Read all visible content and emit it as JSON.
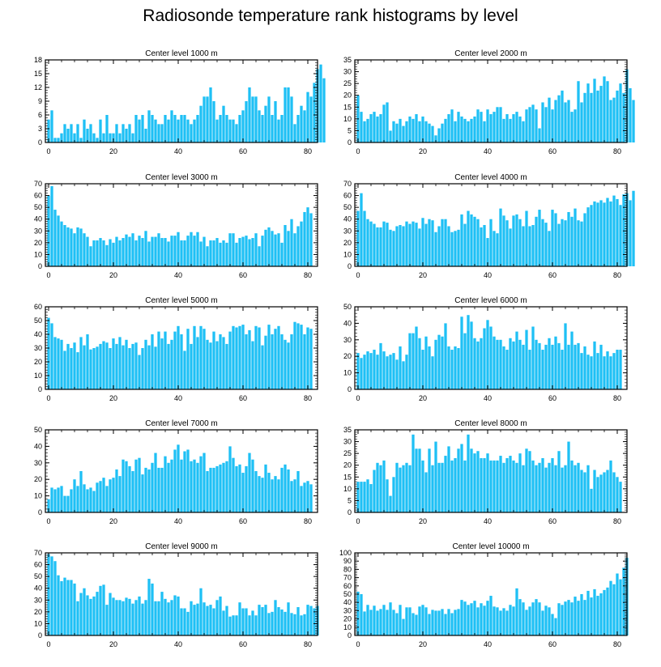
{
  "title": "Radiosonde temperature rank histograms by level",
  "chart_data": [
    {
      "type": "bar",
      "title": "Center level 1000 m",
      "xlabel": "",
      "ylabel": "",
      "xlim": [
        -1,
        83
      ],
      "ylim": [
        0,
        18
      ],
      "xticks": [
        0,
        20,
        40,
        60,
        80
      ],
      "yticks": [
        0,
        3,
        6,
        9,
        12,
        15,
        18
      ],
      "values": [
        5,
        7,
        1,
        1,
        2,
        4,
        3,
        4,
        2,
        4,
        1,
        5,
        3,
        4,
        2,
        1,
        5,
        2,
        6,
        2,
        2,
        4,
        2,
        4,
        3,
        4,
        2,
        6,
        5,
        6,
        3,
        7,
        6,
        5,
        4,
        4,
        6,
        5,
        7,
        6,
        5,
        6,
        6,
        5,
        4,
        5,
        6,
        8,
        10,
        10,
        12,
        9,
        5,
        6,
        8,
        6,
        5,
        5,
        4,
        6,
        7,
        9,
        12,
        10,
        10,
        7,
        6,
        8,
        10,
        6,
        9,
        5,
        6,
        12,
        12,
        10,
        4,
        6,
        8,
        7,
        11,
        10,
        13,
        16,
        17,
        14
      ]
    },
    {
      "type": "bar",
      "title": "Center level 2000 m",
      "xlabel": "",
      "ylabel": "",
      "xlim": [
        -1,
        83
      ],
      "ylim": [
        0,
        35
      ],
      "xticks": [
        0,
        20,
        40,
        60,
        80
      ],
      "yticks": [
        0,
        5,
        10,
        15,
        20,
        25,
        30,
        35
      ],
      "values": [
        20,
        13,
        9,
        10,
        12,
        13,
        11,
        12,
        16,
        17,
        5,
        9,
        8,
        10,
        7,
        9,
        11,
        10,
        12,
        9,
        11,
        9,
        8,
        7,
        3,
        6,
        8,
        10,
        12,
        14,
        9,
        13,
        11,
        10,
        9,
        10,
        11,
        14,
        13,
        9,
        14,
        12,
        13,
        15,
        15,
        10,
        12,
        10,
        12,
        13,
        11,
        9,
        14,
        15,
        16,
        14,
        6,
        17,
        15,
        19,
        14,
        18,
        20,
        22,
        17,
        18,
        13,
        14,
        26,
        17,
        21,
        25,
        21,
        27,
        22,
        24,
        28,
        26,
        18,
        19,
        22,
        25,
        21,
        31,
        23,
        18
      ]
    },
    {
      "type": "bar",
      "title": "Center level 3000 m",
      "xlabel": "",
      "ylabel": "",
      "xlim": [
        -1,
        83
      ],
      "ylim": [
        0,
        70
      ],
      "xticks": [
        0,
        20,
        40,
        60,
        80
      ],
      "yticks": [
        0,
        10,
        20,
        30,
        40,
        50,
        60,
        70
      ],
      "values": [
        60,
        68,
        48,
        43,
        38,
        35,
        33,
        32,
        28,
        33,
        32,
        28,
        25,
        17,
        22,
        22,
        24,
        22,
        18,
        23,
        20,
        25,
        22,
        24,
        27,
        25,
        28,
        22,
        26,
        24,
        30,
        21,
        25,
        25,
        28,
        24,
        24,
        21,
        26,
        26,
        29,
        22,
        22,
        26,
        29,
        26,
        29,
        21,
        25,
        17,
        22,
        22,
        24,
        20,
        22,
        20,
        28,
        28,
        20,
        24,
        25,
        26,
        23,
        24,
        28,
        17,
        26,
        31,
        33,
        30,
        27,
        28,
        20,
        35,
        30,
        40,
        28,
        34,
        38,
        46,
        50,
        45
      ]
    },
    {
      "type": "bar",
      "title": "Center level 4000 m",
      "xlabel": "",
      "ylabel": "",
      "xlim": [
        -1,
        83
      ],
      "ylim": [
        0,
        70
      ],
      "xticks": [
        0,
        20,
        40,
        60,
        80
      ],
      "yticks": [
        0,
        10,
        20,
        30,
        40,
        50,
        60,
        70
      ],
      "values": [
        47,
        62,
        47,
        40,
        38,
        36,
        33,
        33,
        38,
        37,
        31,
        30,
        34,
        35,
        34,
        38,
        36,
        38,
        37,
        32,
        41,
        36,
        40,
        39,
        29,
        34,
        40,
        40,
        34,
        29,
        30,
        31,
        44,
        36,
        47,
        44,
        42,
        40,
        33,
        35,
        24,
        40,
        30,
        28,
        49,
        43,
        39,
        32,
        43,
        44,
        40,
        34,
        47,
        34,
        35,
        42,
        48,
        40,
        37,
        30,
        48,
        45,
        36,
        40,
        39,
        46,
        42,
        49,
        39,
        38,
        45,
        50,
        52,
        55,
        54,
        56,
        54,
        58,
        55,
        60,
        57,
        52,
        61,
        62,
        56,
        64
      ]
    },
    {
      "type": "bar",
      "title": "Center level 5000 m",
      "xlabel": "",
      "ylabel": "",
      "xlim": [
        -1,
        83
      ],
      "ylim": [
        0,
        60
      ],
      "xticks": [
        0,
        20,
        40,
        60,
        80
      ],
      "yticks": [
        0,
        10,
        20,
        30,
        40,
        50,
        60
      ],
      "values": [
        52,
        48,
        38,
        37,
        36,
        28,
        33,
        30,
        34,
        27,
        38,
        32,
        40,
        29,
        30,
        31,
        33,
        35,
        34,
        30,
        37,
        33,
        38,
        32,
        36,
        30,
        33,
        34,
        25,
        30,
        36,
        32,
        40,
        31,
        42,
        37,
        42,
        33,
        36,
        42,
        46,
        40,
        28,
        44,
        33,
        46,
        38,
        46,
        44,
        36,
        34,
        42,
        35,
        40,
        38,
        33,
        42,
        46,
        45,
        46,
        47,
        40,
        43,
        35,
        46,
        45,
        32,
        39,
        47,
        40,
        44,
        46,
        40,
        36,
        34,
        40,
        49,
        48,
        47,
        40,
        45,
        44
      ]
    },
    {
      "type": "bar",
      "title": "Center level 6000 m",
      "xlabel": "",
      "ylabel": "",
      "xlim": [
        -1,
        83
      ],
      "ylim": [
        0,
        50
      ],
      "xticks": [
        0,
        20,
        40,
        60,
        80
      ],
      "yticks": [
        0,
        10,
        20,
        30,
        40,
        50
      ],
      "values": [
        22,
        19,
        21,
        23,
        22,
        24,
        21,
        28,
        23,
        20,
        21,
        22,
        18,
        26,
        17,
        21,
        34,
        34,
        38,
        31,
        24,
        32,
        26,
        20,
        30,
        33,
        32,
        40,
        26,
        24,
        26,
        25,
        44,
        34,
        45,
        41,
        31,
        29,
        31,
        37,
        42,
        38,
        32,
        30,
        30,
        26,
        24,
        31,
        29,
        35,
        30,
        27,
        36,
        24,
        38,
        30,
        28,
        24,
        27,
        31,
        27,
        32,
        28,
        24,
        40,
        27,
        35,
        27,
        28,
        22,
        26,
        21,
        20,
        29,
        22,
        27,
        20,
        23,
        20,
        22,
        24,
        24
      ]
    },
    {
      "type": "bar",
      "title": "Center level 7000 m",
      "xlabel": "",
      "ylabel": "",
      "xlim": [
        -1,
        83
      ],
      "ylim": [
        0,
        50
      ],
      "xticks": [
        0,
        20,
        40,
        60,
        80
      ],
      "yticks": [
        0,
        10,
        20,
        30,
        40,
        50
      ],
      "values": [
        8,
        15,
        14,
        15,
        16,
        10,
        10,
        14,
        20,
        16,
        25,
        17,
        14,
        15,
        13,
        18,
        19,
        21,
        16,
        20,
        21,
        26,
        22,
        32,
        31,
        28,
        25,
        32,
        33,
        23,
        27,
        26,
        30,
        36,
        27,
        27,
        34,
        30,
        32,
        38,
        41,
        32,
        37,
        38,
        31,
        32,
        30,
        34,
        36,
        25,
        27,
        27,
        28,
        29,
        30,
        31,
        40,
        33,
        28,
        29,
        24,
        28,
        36,
        32,
        25,
        22,
        21,
        29,
        24,
        20,
        22,
        20,
        27,
        29,
        26,
        19,
        20,
        25,
        16,
        18,
        19,
        17
      ]
    },
    {
      "type": "bar",
      "title": "Center level 8000 m",
      "xlabel": "",
      "ylabel": "",
      "xlim": [
        -1,
        83
      ],
      "ylim": [
        0,
        35
      ],
      "xticks": [
        0,
        20,
        40,
        60,
        80
      ],
      "yticks": [
        0,
        5,
        10,
        15,
        20,
        25,
        30,
        35
      ],
      "values": [
        13,
        13,
        13,
        14,
        12,
        18,
        21,
        20,
        22,
        14,
        7,
        15,
        21,
        19,
        20,
        21,
        20,
        33,
        27,
        27,
        22,
        17,
        27,
        20,
        30,
        21,
        21,
        24,
        28,
        22,
        23,
        27,
        29,
        22,
        33,
        27,
        25,
        26,
        23,
        23,
        25,
        22,
        22,
        22,
        24,
        21,
        23,
        24,
        22,
        21,
        25,
        20,
        27,
        26,
        22,
        20,
        21,
        23,
        19,
        21,
        23,
        20,
        26,
        19,
        20,
        30,
        22,
        20,
        21,
        18,
        17,
        20,
        10,
        18,
        15,
        16,
        17,
        18,
        22,
        17,
        15,
        13
      ]
    },
    {
      "type": "bar",
      "title": "Center level 9000 m",
      "xlabel": "",
      "ylabel": "",
      "xlim": [
        -1,
        83
      ],
      "ylim": [
        0,
        70
      ],
      "xticks": [
        0,
        20,
        40,
        60,
        80
      ],
      "yticks": [
        0,
        10,
        20,
        30,
        40,
        50,
        60,
        70
      ],
      "values": [
        69,
        67,
        63,
        51,
        46,
        49,
        47,
        47,
        44,
        29,
        36,
        40,
        34,
        31,
        33,
        37,
        42,
        43,
        26,
        36,
        32,
        30,
        30,
        29,
        32,
        31,
        27,
        30,
        33,
        27,
        30,
        48,
        44,
        29,
        29,
        37,
        31,
        28,
        30,
        34,
        33,
        23,
        23,
        20,
        29,
        26,
        27,
        40,
        28,
        25,
        26,
        23,
        30,
        33,
        21,
        25,
        16,
        17,
        17,
        28,
        23,
        23,
        17,
        21,
        17,
        26,
        24,
        26,
        19,
        20,
        30,
        24,
        22,
        20,
        28,
        19,
        18,
        24,
        17,
        18,
        26,
        25,
        23,
        25
      ]
    },
    {
      "type": "bar",
      "title": "Center level 10000 m",
      "xlabel": "",
      "ylabel": "",
      "xlim": [
        -1,
        83
      ],
      "ylim": [
        0,
        100
      ],
      "xticks": [
        0,
        20,
        40,
        60,
        80
      ],
      "yticks": [
        0,
        10,
        20,
        30,
        40,
        50,
        60,
        70,
        80,
        90,
        100
      ],
      "values": [
        53,
        50,
        29,
        37,
        31,
        36,
        30,
        32,
        37,
        31,
        40,
        31,
        27,
        37,
        20,
        34,
        34,
        27,
        25,
        35,
        37,
        34,
        26,
        31,
        30,
        30,
        32,
        26,
        32,
        27,
        31,
        32,
        43,
        41,
        37,
        39,
        42,
        34,
        39,
        36,
        42,
        48,
        35,
        34,
        30,
        33,
        30,
        37,
        35,
        57,
        44,
        40,
        31,
        35,
        40,
        44,
        40,
        30,
        36,
        34,
        26,
        21,
        39,
        37,
        41,
        43,
        40,
        47,
        42,
        50,
        43,
        54,
        46,
        56,
        48,
        51,
        55,
        58,
        66,
        62,
        75,
        68,
        82,
        94
      ]
    }
  ]
}
